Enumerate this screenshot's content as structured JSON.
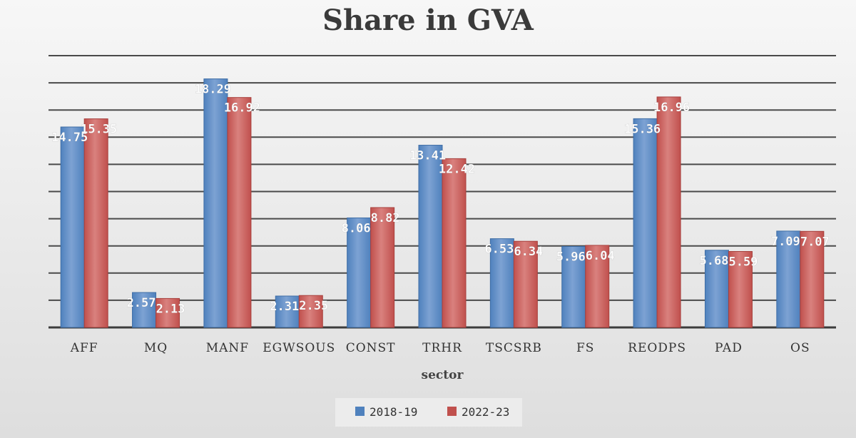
{
  "chart_data": {
    "type": "bar",
    "title": "Share in GVA",
    "xlabel": "sector",
    "ylabel": "",
    "ylim": [
      0,
      20
    ],
    "grid": true,
    "legend_position": "bottom",
    "categories": [
      "AFF",
      "MQ",
      "MANF",
      "EGWSOUS",
      "CONST",
      "TRHR",
      "TSCSRB",
      "FS",
      "REODPS",
      "PAD",
      "OS"
    ],
    "series": [
      {
        "name": "2018-19",
        "color": "#4f81bd",
        "values": [
          14.75,
          2.57,
          18.29,
          2.31,
          8.06,
          13.41,
          6.53,
          5.96,
          15.36,
          5.68,
          7.09
        ],
        "labels": [
          "14.75",
          "2.57",
          "18.29",
          "2.31",
          "8.06",
          "13.41",
          "6.53",
          "5.96",
          "15.36",
          "5.68",
          "7.09"
        ]
      },
      {
        "name": "2022-23",
        "color": "#c0504d",
        "values": [
          15.35,
          2.13,
          16.92,
          2.35,
          8.82,
          12.42,
          6.34,
          6.04,
          16.96,
          5.59,
          7.07
        ],
        "labels": [
          "15.35",
          "2.13",
          "16.92",
          "2.35",
          "8.82",
          "12.42",
          "6.34",
          "6.04",
          "16.96",
          "5.59",
          "7.07"
        ]
      }
    ]
  }
}
